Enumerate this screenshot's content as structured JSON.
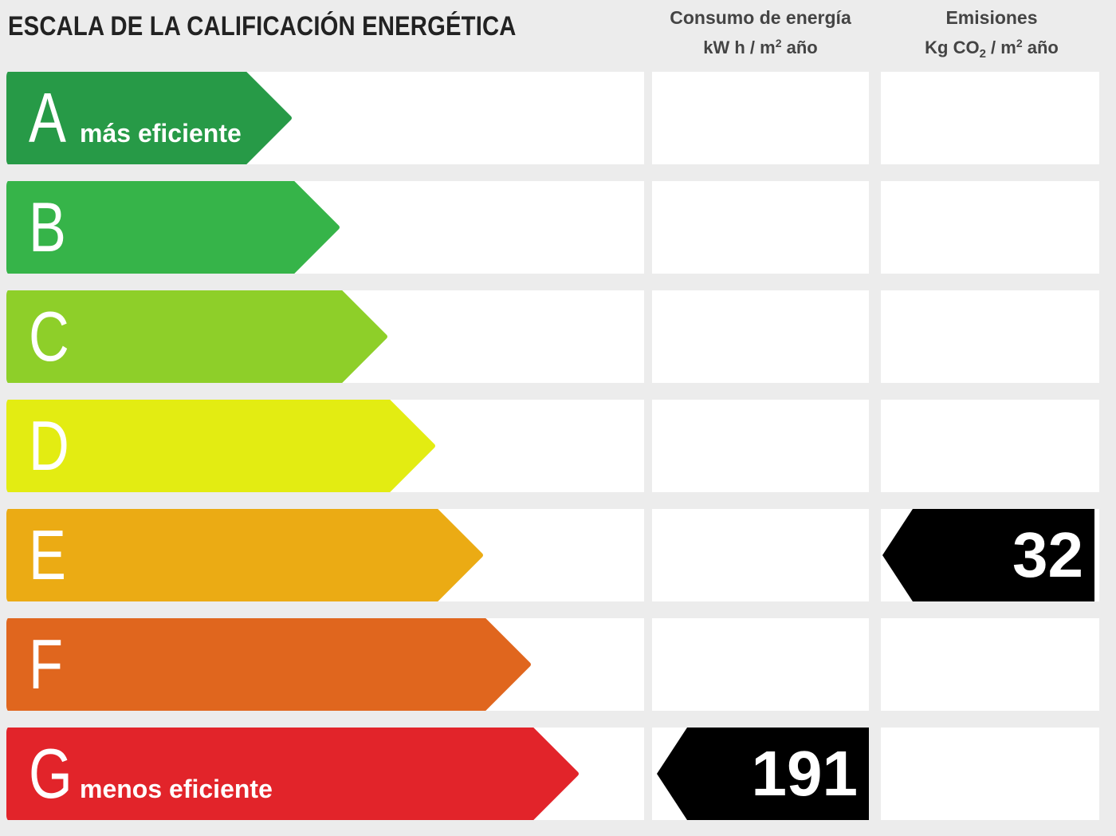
{
  "title": "ESCALA DE LA CALIFICACIÓN ENERGÉTICA",
  "columns": {
    "energy": {
      "line1": "Consumo de energía",
      "line2_pre": "kW h / m",
      "line2_sup": "2",
      "line2_post": " año"
    },
    "emissions": {
      "line1": "Emisiones",
      "line2_pre": "Kg CO",
      "line2_sub": "2",
      "line2_mid": " / m",
      "line2_sup": "2",
      "line2_post": " año"
    }
  },
  "ratings": [
    {
      "letter": "A",
      "label": "más eficiente",
      "color": "#279a47"
    },
    {
      "letter": "B",
      "label": "",
      "color": "#36b449"
    },
    {
      "letter": "C",
      "label": "",
      "color": "#8ecf29"
    },
    {
      "letter": "D",
      "label": "",
      "color": "#e3ec12"
    },
    {
      "letter": "E",
      "label": "",
      "color": "#ebab14"
    },
    {
      "letter": "F",
      "label": "",
      "color": "#e0661e"
    },
    {
      "letter": "G",
      "label": "menos eficiente",
      "color": "#e2242a"
    }
  ],
  "indicators": {
    "energy": {
      "value": "191",
      "rating": "G"
    },
    "emissions": {
      "value": "32",
      "rating": "E"
    }
  }
}
